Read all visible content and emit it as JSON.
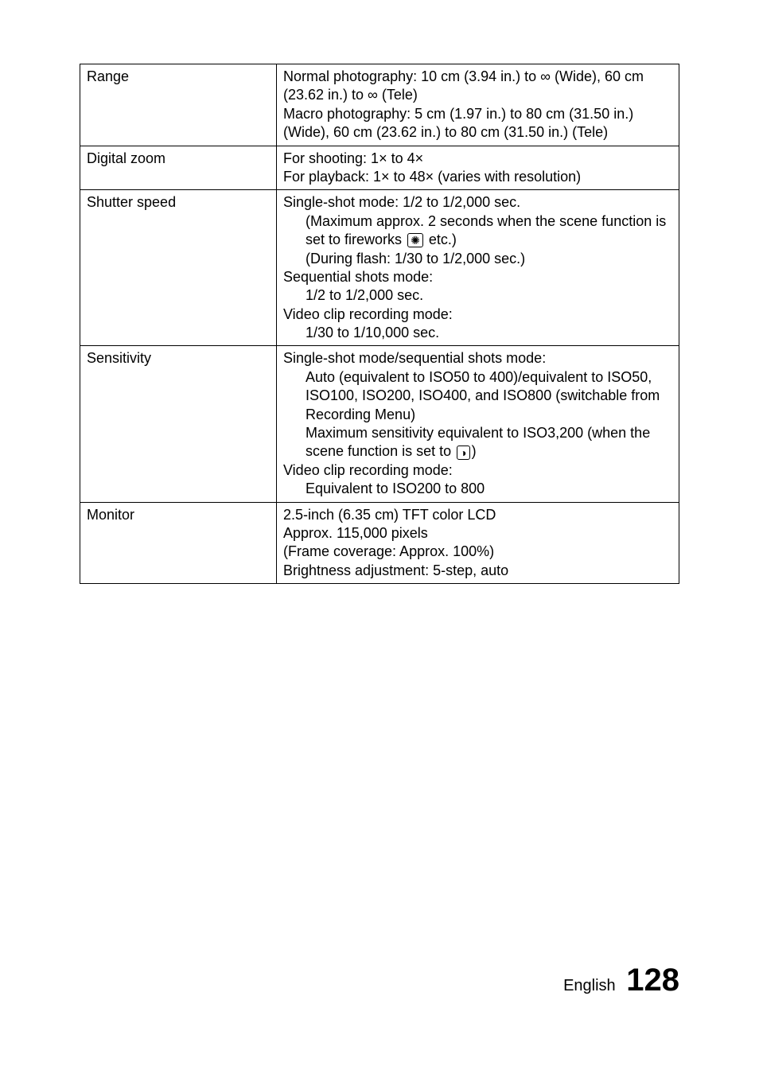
{
  "rows": {
    "range": {
      "label": "Range",
      "line1": "Normal photography: 10 cm (3.94 in.) to ∞ (Wide), 60 cm (23.62 in.) to ∞ (Tele)",
      "line2": "Macro photography: 5 cm (1.97 in.) to 80 cm (31.50 in.) (Wide), 60 cm (23.62 in.) to 80 cm (31.50 in.) (Tele)"
    },
    "digital_zoom": {
      "label": "Digital zoom",
      "line1": "For shooting: 1× to 4×",
      "line2": "For playback: 1× to 48× (varies with resolution)"
    },
    "shutter": {
      "label": "Shutter speed",
      "single_head": "Single-shot mode: 1/2 to 1/2,000 sec.",
      "single_sub1a": "(Maximum approx. 2 seconds when the scene function is set to fireworks",
      "single_sub1b": " etc.)",
      "single_sub2": "(During flash: 1/30 to 1/2,000 sec.)",
      "seq_head": "Sequential shots mode:",
      "seq_sub": "1/2 to 1/2,000 sec.",
      "video_head": "Video clip recording mode:",
      "video_sub": "1/30 to 1/10,000 sec.",
      "icon_fireworks": "✺"
    },
    "sensitivity": {
      "label": "Sensitivity",
      "single_head": "Single-shot mode/sequential shots mode:",
      "single_sub1": "Auto (equivalent to ISO50 to 400)/equivalent to ISO50, ISO100, ISO200, ISO400, and ISO800 (switchable from Recording Menu)",
      "single_sub2a": "Maximum sensitivity equivalent to ISO3,200 (when the scene function is set to ",
      "single_sub2b": ")",
      "icon_lamp": "◑",
      "video_head": "Video clip recording mode:",
      "video_sub": "Equivalent to ISO200 to 800"
    },
    "monitor": {
      "label": "Monitor",
      "line1": "2.5-inch (6.35 cm) TFT color LCD",
      "line2": "Approx. 115,000 pixels",
      "line3": "(Frame coverage: Approx. 100%)",
      "line4": "Brightness adjustment: 5-step, auto"
    }
  },
  "footer": {
    "lang": "English",
    "page": "128"
  }
}
